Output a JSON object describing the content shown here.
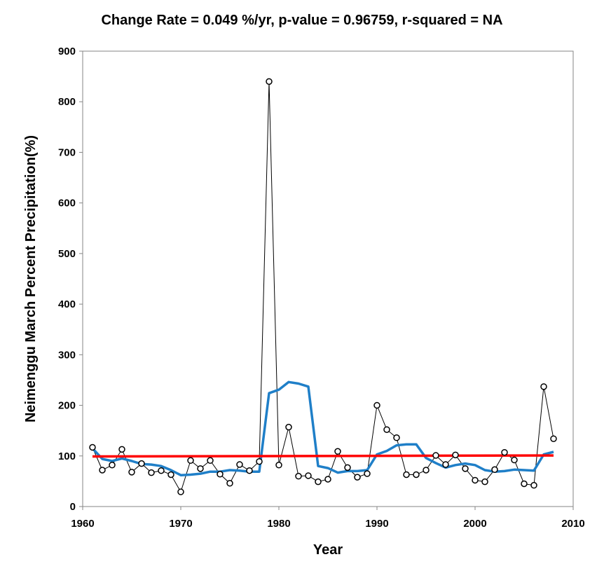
{
  "chart_data": {
    "type": "line",
    "title": "Change Rate =  0.049 %/yr,  p-value =  0.96759,  r-squared =  NA",
    "xlabel": "Year",
    "ylabel": "Neimenggu March Percent Precipitation(%)",
    "xlim": [
      1960,
      2010
    ],
    "ylim": [
      0,
      900
    ],
    "xticks": [
      1960,
      1970,
      1980,
      1990,
      2000,
      2010
    ],
    "yticks": [
      0,
      100,
      200,
      300,
      400,
      500,
      600,
      700,
      800,
      900
    ],
    "grid": false,
    "legend": "none",
    "series": [
      {
        "style": "line-with-circle-markers",
        "color": "#000000",
        "x": [
          1961,
          1962,
          1963,
          1964,
          1965,
          1966,
          1967,
          1968,
          1969,
          1970,
          1971,
          1972,
          1973,
          1974,
          1975,
          1976,
          1977,
          1978,
          1979,
          1980,
          1981,
          1982,
          1983,
          1984,
          1985,
          1986,
          1987,
          1988,
          1989,
          1990,
          1991,
          1992,
          1993,
          1994,
          1995,
          1996,
          1997,
          1998,
          1999,
          2000,
          2001,
          2002,
          2003,
          2004,
          2005,
          2006,
          2007,
          2008
        ],
        "y": [
          117,
          72,
          82,
          113,
          68,
          85,
          67,
          71,
          63,
          29,
          91,
          75,
          91,
          64,
          46,
          83,
          71,
          89,
          840,
          82,
          157,
          60,
          61,
          49,
          54,
          109,
          77,
          58,
          65,
          200,
          152,
          136,
          63,
          63,
          72,
          101,
          83,
          102,
          75,
          52,
          49,
          73,
          107,
          92,
          45,
          42,
          237,
          134
        ]
      },
      {
        "style": "smoothed-line",
        "color": "#1f7fc8",
        "x": [
          1961,
          1962,
          1963,
          1964,
          1965,
          1966,
          1967,
          1968,
          1969,
          1970,
          1971,
          1972,
          1973,
          1974,
          1975,
          1976,
          1977,
          1978,
          1979,
          1980,
          1981,
          1982,
          1983,
          1984,
          1985,
          1986,
          1987,
          1988,
          1989,
          1990,
          1991,
          1992,
          1993,
          1994,
          1995,
          1996,
          1997,
          1998,
          1999,
          2000,
          2001,
          2002,
          2003,
          2004,
          2005,
          2006,
          2007,
          2008
        ],
        "y": [
          115,
          94,
          90,
          95,
          90,
          84,
          83,
          80,
          72,
          62,
          63,
          65,
          69,
          69,
          72,
          71,
          69,
          69,
          224,
          231,
          246,
          243,
          237,
          80,
          76,
          67,
          70,
          70,
          72,
          103,
          110,
          121,
          123,
          123,
          96,
          86,
          77,
          82,
          85,
          82,
          72,
          69,
          70,
          73,
          72,
          71,
          103,
          108
        ]
      },
      {
        "style": "trend-line",
        "color": "#ff0000",
        "x": [
          1961,
          2008
        ],
        "y": [
          99,
          101
        ]
      }
    ]
  }
}
